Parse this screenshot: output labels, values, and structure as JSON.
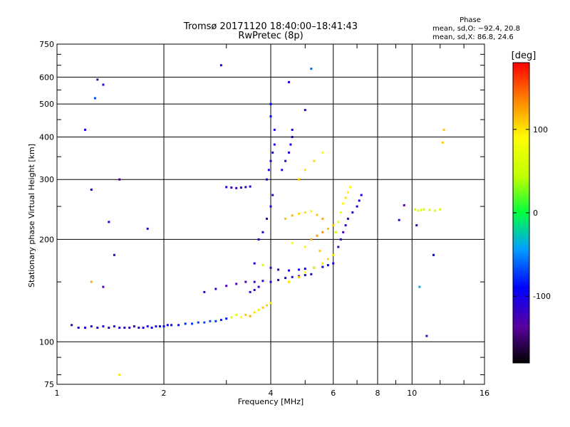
{
  "chart_data": {
    "type": "scatter",
    "title": "Tromsø 20171120 18:40:00–18:41:43",
    "subtitle": "RwPretec (8p)",
    "xlabel": "Frequency [MHz]",
    "ylabel": "Stationary phase Virtual Height [km]",
    "x_scale": "log",
    "y_scale": "log",
    "xlim": [
      1,
      16
    ],
    "ylim": [
      75,
      750
    ],
    "x_ticks": [
      "1",
      "2",
      "4",
      "6",
      "8",
      "10",
      "16"
    ],
    "y_ticks": [
      "75",
      "100",
      "200",
      "300",
      "400",
      "500",
      "600",
      "750"
    ],
    "grid": true,
    "stats": {
      "title": "Phase",
      "line_o": "mean, sd,O: −92.4, 20.8",
      "line_x": "mean, sd,X:  86.8, 24.6"
    },
    "colorbar": {
      "label": "[deg]",
      "range": [
        -180,
        180
      ],
      "ticks": [
        "100",
        "0",
        "-100"
      ],
      "tick_values": [
        100,
        0,
        -100
      ]
    },
    "points": [
      [
        1.1,
        112,
        -110
      ],
      [
        1.15,
        110,
        -105
      ],
      [
        1.2,
        110,
        -108
      ],
      [
        1.25,
        111,
        -100
      ],
      [
        1.3,
        110,
        -112
      ],
      [
        1.35,
        111,
        -106
      ],
      [
        1.4,
        110,
        -110
      ],
      [
        1.45,
        111,
        -104
      ],
      [
        1.5,
        110,
        -108
      ],
      [
        1.55,
        110,
        -115
      ],
      [
        1.6,
        110,
        -120
      ],
      [
        1.65,
        111,
        -112
      ],
      [
        1.7,
        110,
        -108
      ],
      [
        1.75,
        110,
        -105
      ],
      [
        1.8,
        111,
        -110
      ],
      [
        1.85,
        110,
        -98
      ],
      [
        1.9,
        111,
        -100
      ],
      [
        1.95,
        111,
        -95
      ],
      [
        2.0,
        111,
        -92
      ],
      [
        2.05,
        112,
        -90
      ],
      [
        2.1,
        112,
        -88
      ],
      [
        2.2,
        112,
        -85
      ],
      [
        2.3,
        113,
        -80
      ],
      [
        2.4,
        113,
        -75
      ],
      [
        2.5,
        114,
        -72
      ],
      [
        2.6,
        114,
        -70
      ],
      [
        2.7,
        115,
        -68
      ],
      [
        2.8,
        115,
        -75
      ],
      [
        2.9,
        116,
        -80
      ],
      [
        3.0,
        117,
        -85
      ],
      [
        3.1,
        118,
        60
      ],
      [
        3.2,
        120,
        70
      ],
      [
        3.3,
        118,
        90
      ],
      [
        3.4,
        120,
        110
      ],
      [
        3.5,
        119,
        120
      ],
      [
        3.6,
        122,
        100
      ],
      [
        3.7,
        124,
        95
      ],
      [
        3.8,
        126,
        110
      ],
      [
        3.9,
        128,
        105
      ],
      [
        4.0,
        130,
        100
      ],
      [
        2.6,
        140,
        -115
      ],
      [
        2.8,
        143,
        -120
      ],
      [
        3.0,
        146,
        -125
      ],
      [
        3.2,
        148,
        -130
      ],
      [
        3.4,
        150,
        -128
      ],
      [
        3.6,
        150,
        -122
      ],
      [
        3.8,
        151,
        -118
      ],
      [
        4.0,
        150,
        -112
      ],
      [
        4.2,
        152,
        -108
      ],
      [
        4.4,
        154,
        -105
      ],
      [
        4.6,
        155,
        -110
      ],
      [
        4.8,
        156,
        -112
      ],
      [
        5.0,
        157,
        -114
      ],
      [
        5.2,
        158,
        -110
      ],
      [
        3.5,
        140,
        -120
      ],
      [
        3.6,
        142,
        -125
      ],
      [
        3.7,
        145,
        -118
      ],
      [
        3.6,
        170,
        -100
      ],
      [
        3.8,
        168,
        60
      ],
      [
        4.0,
        165,
        -110
      ],
      [
        4.2,
        163,
        -108
      ],
      [
        4.5,
        162,
        -105
      ],
      [
        4.8,
        163,
        -100
      ],
      [
        5.0,
        164,
        -98
      ],
      [
        5.3,
        165,
        -95
      ],
      [
        5.6,
        166,
        -92
      ],
      [
        5.8,
        168,
        -90
      ],
      [
        6.0,
        170,
        -110
      ],
      [
        4.5,
        150,
        100
      ],
      [
        4.8,
        155,
        110
      ],
      [
        5.0,
        160,
        90
      ],
      [
        5.3,
        165,
        95
      ],
      [
        5.6,
        170,
        100
      ],
      [
        5.8,
        175,
        105
      ],
      [
        6.0,
        180,
        100
      ],
      [
        5.5,
        185,
        110
      ],
      [
        5.0,
        190,
        95
      ],
      [
        4.6,
        195,
        90
      ],
      [
        6.2,
        190,
        -110
      ],
      [
        6.3,
        200,
        -115
      ],
      [
        6.4,
        210,
        -120
      ],
      [
        6.5,
        220,
        -118
      ],
      [
        6.6,
        230,
        -112
      ],
      [
        6.8,
        240,
        -105
      ],
      [
        7.0,
        250,
        -100
      ],
      [
        7.1,
        260,
        -98
      ],
      [
        7.2,
        270,
        -102
      ],
      [
        6.1,
        210,
        60
      ],
      [
        6.2,
        225,
        70
      ],
      [
        6.3,
        240,
        80
      ],
      [
        6.4,
        255,
        90
      ],
      [
        6.5,
        265,
        100
      ],
      [
        6.6,
        275,
        95
      ],
      [
        6.7,
        285,
        85
      ],
      [
        4.4,
        230,
        110
      ],
      [
        4.6,
        235,
        115
      ],
      [
        4.8,
        238,
        105
      ],
      [
        5.0,
        240,
        100
      ],
      [
        5.2,
        242,
        95
      ],
      [
        5.4,
        236,
        110
      ],
      [
        5.6,
        230,
        120
      ],
      [
        5.2,
        200,
        120
      ],
      [
        5.4,
        205,
        125
      ],
      [
        5.6,
        210,
        130
      ],
      [
        5.8,
        215,
        115
      ],
      [
        6.0,
        220,
        110
      ],
      [
        3.7,
        200,
        -110
      ],
      [
        3.8,
        210,
        -112
      ],
      [
        3.9,
        230,
        -115
      ],
      [
        4.0,
        250,
        -110
      ],
      [
        4.05,
        270,
        -108
      ],
      [
        3.0,
        285,
        -115
      ],
      [
        3.1,
        284,
        -118
      ],
      [
        3.2,
        283,
        -120
      ],
      [
        3.3,
        284,
        -115
      ],
      [
        3.4,
        285,
        -112
      ],
      [
        3.5,
        286,
        -110
      ],
      [
        3.9,
        300,
        -100
      ],
      [
        3.95,
        320,
        -105
      ],
      [
        4.0,
        340,
        -108
      ],
      [
        4.05,
        360,
        -110
      ],
      [
        4.1,
        380,
        -102
      ],
      [
        4.1,
        420,
        -100
      ],
      [
        4.0,
        460,
        -95
      ],
      [
        4.0,
        500,
        -90
      ],
      [
        4.3,
        320,
        -110
      ],
      [
        4.4,
        340,
        -112
      ],
      [
        4.5,
        360,
        -108
      ],
      [
        4.55,
        380,
        -105
      ],
      [
        4.6,
        400,
        -100
      ],
      [
        4.6,
        420,
        -98
      ],
      [
        4.8,
        300,
        110
      ],
      [
        5.0,
        320,
        100
      ],
      [
        5.3,
        340,
        105
      ],
      [
        5.6,
        360,
        90
      ],
      [
        1.25,
        280,
        -100
      ],
      [
        1.3,
        590,
        -130
      ],
      [
        1.35,
        570,
        -110
      ],
      [
        1.4,
        225,
        -100
      ],
      [
        1.45,
        180,
        -120
      ],
      [
        1.5,
        300,
        -150
      ],
      [
        1.2,
        420,
        -100
      ],
      [
        1.28,
        520,
        -70
      ],
      [
        1.8,
        215,
        -120
      ],
      [
        2.9,
        650,
        -100
      ],
      [
        5.2,
        635,
        -60
      ],
      [
        5.0,
        480,
        -110
      ],
      [
        4.5,
        580,
        -100
      ],
      [
        1.35,
        145,
        -130
      ],
      [
        1.5,
        80,
        100
      ],
      [
        1.25,
        150,
        120
      ],
      [
        9.2,
        228,
        -100
      ],
      [
        9.5,
        252,
        -140
      ],
      [
        10.2,
        245,
        60
      ],
      [
        10.4,
        243,
        70
      ],
      [
        10.6,
        244,
        65
      ],
      [
        10.8,
        245,
        60
      ],
      [
        11.2,
        244,
        60
      ],
      [
        11.6,
        243,
        65
      ],
      [
        12.0,
        245,
        70
      ],
      [
        10.5,
        145,
        -40
      ],
      [
        11.0,
        104,
        -120
      ],
      [
        11.5,
        180,
        -90
      ],
      [
        12.2,
        385,
        110
      ],
      [
        12.3,
        420,
        110
      ],
      [
        10.3,
        220,
        -120
      ]
    ]
  }
}
